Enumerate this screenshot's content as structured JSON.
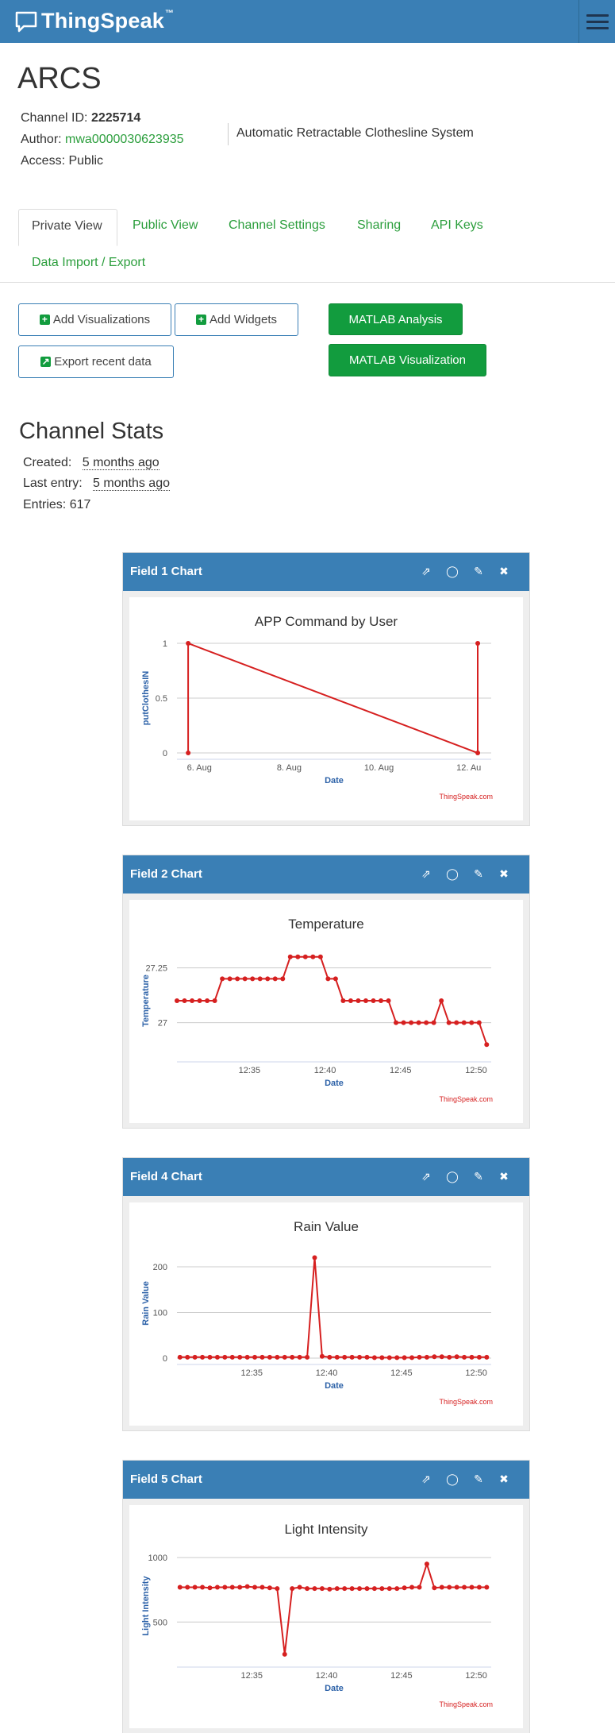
{
  "navbar": {
    "brand": "ThingSpeak",
    "trademark": "™"
  },
  "channel": {
    "title": "ARCS",
    "id_label": "Channel ID:",
    "id": "2225714",
    "author_label": "Author:",
    "author": "mwa0000030623935",
    "access_label": "Access:",
    "access": "Public",
    "description": "Automatic Retractable Clothesline System"
  },
  "tabs": [
    "Private View",
    "Public View",
    "Channel Settings",
    "Sharing",
    "API Keys",
    "Data Import / Export"
  ],
  "buttons": {
    "add_visualizations": "Add Visualizations",
    "add_widgets": "Add Widgets",
    "export_recent": "Export recent data",
    "matlab_analysis": "MATLAB Analysis",
    "matlab_visualization": "MATLAB Visualization"
  },
  "stats": {
    "title": "Channel Stats",
    "created_label": "Created:",
    "created": "5 months ago",
    "last_entry_label": "Last entry:",
    "last_entry": "5 months ago",
    "entries_label": "Entries:",
    "entries": "617"
  },
  "icons": [
    "speech-bubble-logo-icon",
    "menu-icon",
    "external-link-icon",
    "comment-icon",
    "pencil-icon",
    "close-icon",
    "plus-square-icon",
    "export-icon"
  ],
  "colors": {
    "navbar": "#3a7fb5",
    "link": "#2b9e3c",
    "button_green": "#129c3e",
    "series": "#d62020"
  },
  "chart_data": [
    {
      "card_title": "Field 1 Chart",
      "type": "line",
      "title": "APP Command by User",
      "xlabel": "Date",
      "ylabel": "putClothesIN",
      "credit": "ThingSpeak.com",
      "x_ticks": [
        "6. Aug",
        "8. Aug",
        "10. Aug",
        "12. Au"
      ],
      "x_tick_days": [
        6,
        8,
        10,
        12
      ],
      "y_ticks": [
        0,
        0.5,
        1
      ],
      "y_tick_labels": [
        "0",
        "0.5",
        "1"
      ],
      "ylim": [
        0,
        1
      ],
      "xlim_days": [
        5.5,
        12.5
      ],
      "x_days": [
        5.75,
        5.75,
        12.2,
        12.2
      ],
      "values": [
        0,
        1,
        0,
        1
      ]
    },
    {
      "card_title": "Field 2 Chart",
      "type": "line",
      "title": "Temperature",
      "xlabel": "Date",
      "ylabel": "Temperature",
      "credit": "ThingSpeak.com",
      "x_ticks": [
        "12:35",
        "12:40",
        "12:45",
        "12:50"
      ],
      "x_tick_min": [
        35,
        40,
        45,
        50
      ],
      "y_ticks": [
        27,
        27.25
      ],
      "y_tick_labels": [
        "27",
        "27.25"
      ],
      "ylim": [
        26.85,
        27.35
      ],
      "xlim_min": [
        30.2,
        51
      ],
      "x_min": [
        30.2,
        30.7,
        31.2,
        31.7,
        32.2,
        32.7,
        33.2,
        33.7,
        34.2,
        34.7,
        35.2,
        35.7,
        36.2,
        36.7,
        37.2,
        37.7,
        38.2,
        38.7,
        39.2,
        39.7,
        40.2,
        40.7,
        41.2,
        41.7,
        42.2,
        42.7,
        43.2,
        43.7,
        44.2,
        44.7,
        45.2,
        45.7,
        46.2,
        46.7,
        47.2,
        47.7,
        48.2,
        48.7,
        49.2,
        49.7,
        50.2,
        50.7
      ],
      "values": [
        27.1,
        27.1,
        27.1,
        27.1,
        27.1,
        27.1,
        27.2,
        27.2,
        27.2,
        27.2,
        27.2,
        27.2,
        27.2,
        27.2,
        27.2,
        27.3,
        27.3,
        27.3,
        27.3,
        27.3,
        27.2,
        27.2,
        27.1,
        27.1,
        27.1,
        27.1,
        27.1,
        27.1,
        27.1,
        27.0,
        27.0,
        27.0,
        27.0,
        27.0,
        27.0,
        27.1,
        27.0,
        27.0,
        27.0,
        27.0,
        27.0,
        26.9
      ]
    },
    {
      "card_title": "Field 4 Chart",
      "type": "line",
      "title": "Rain Value",
      "xlabel": "Date",
      "ylabel": "Rain Value",
      "credit": "ThingSpeak.com",
      "x_ticks": [
        "12:35",
        "12:40",
        "12:45",
        "12:50"
      ],
      "x_tick_min": [
        35,
        40,
        45,
        50
      ],
      "y_ticks": [
        0,
        100,
        200
      ],
      "y_tick_labels": [
        "0",
        "100",
        "200"
      ],
      "ylim": [
        0,
        240
      ],
      "xlim_min": [
        30,
        51
      ],
      "x_min": [
        30.2,
        30.7,
        31.2,
        31.7,
        32.2,
        32.7,
        33.2,
        33.7,
        34.2,
        34.7,
        35.2,
        35.7,
        36.2,
        36.7,
        37.2,
        37.7,
        38.2,
        38.7,
        39.2,
        39.7,
        40.2,
        40.7,
        41.2,
        41.7,
        42.2,
        42.7,
        43.2,
        43.7,
        44.2,
        44.7,
        45.2,
        45.7,
        46.2,
        46.7,
        47.2,
        47.7,
        48.2,
        48.7,
        49.2,
        49.7,
        50.2,
        50.7
      ],
      "values": [
        2,
        2,
        2,
        2,
        2,
        2,
        2,
        2,
        2,
        2,
        2,
        2,
        2,
        2,
        2,
        2,
        2,
        2,
        220,
        4,
        2,
        2,
        2,
        2,
        2,
        2,
        1,
        1,
        1,
        1,
        1,
        1,
        2,
        2,
        3,
        3,
        2,
        3,
        2,
        2,
        2,
        2
      ]
    },
    {
      "card_title": "Field 5 Chart",
      "type": "line",
      "title": "Light Intensity",
      "xlabel": "Date",
      "ylabel": "Light Intensity",
      "credit": "ThingSpeak.com",
      "x_ticks": [
        "12:35",
        "12:40",
        "12:45",
        "12:50"
      ],
      "x_tick_min": [
        35,
        40,
        45,
        50
      ],
      "y_ticks": [
        500,
        1000
      ],
      "y_tick_labels": [
        "500",
        "1000"
      ],
      "ylim": [
        200,
        1050
      ],
      "xlim_min": [
        30,
        51
      ],
      "x_min": [
        30.2,
        30.7,
        31.2,
        31.7,
        32.2,
        32.7,
        33.2,
        33.7,
        34.2,
        34.7,
        35.2,
        35.7,
        36.2,
        36.7,
        37.2,
        37.7,
        38.2,
        38.7,
        39.2,
        39.7,
        40.2,
        40.7,
        41.2,
        41.7,
        42.2,
        42.7,
        43.2,
        43.7,
        44.2,
        44.7,
        45.2,
        45.7,
        46.2,
        46.7,
        47.2,
        47.7,
        48.2,
        48.7,
        49.2,
        49.7,
        50.2,
        50.7
      ],
      "values": [
        770,
        770,
        770,
        770,
        765,
        770,
        770,
        770,
        770,
        775,
        770,
        770,
        765,
        760,
        250,
        760,
        770,
        760,
        760,
        760,
        755,
        760,
        760,
        760,
        760,
        760,
        760,
        760,
        760,
        760,
        765,
        770,
        770,
        950,
        765,
        770,
        770,
        770,
        770,
        770,
        770,
        770
      ]
    }
  ]
}
